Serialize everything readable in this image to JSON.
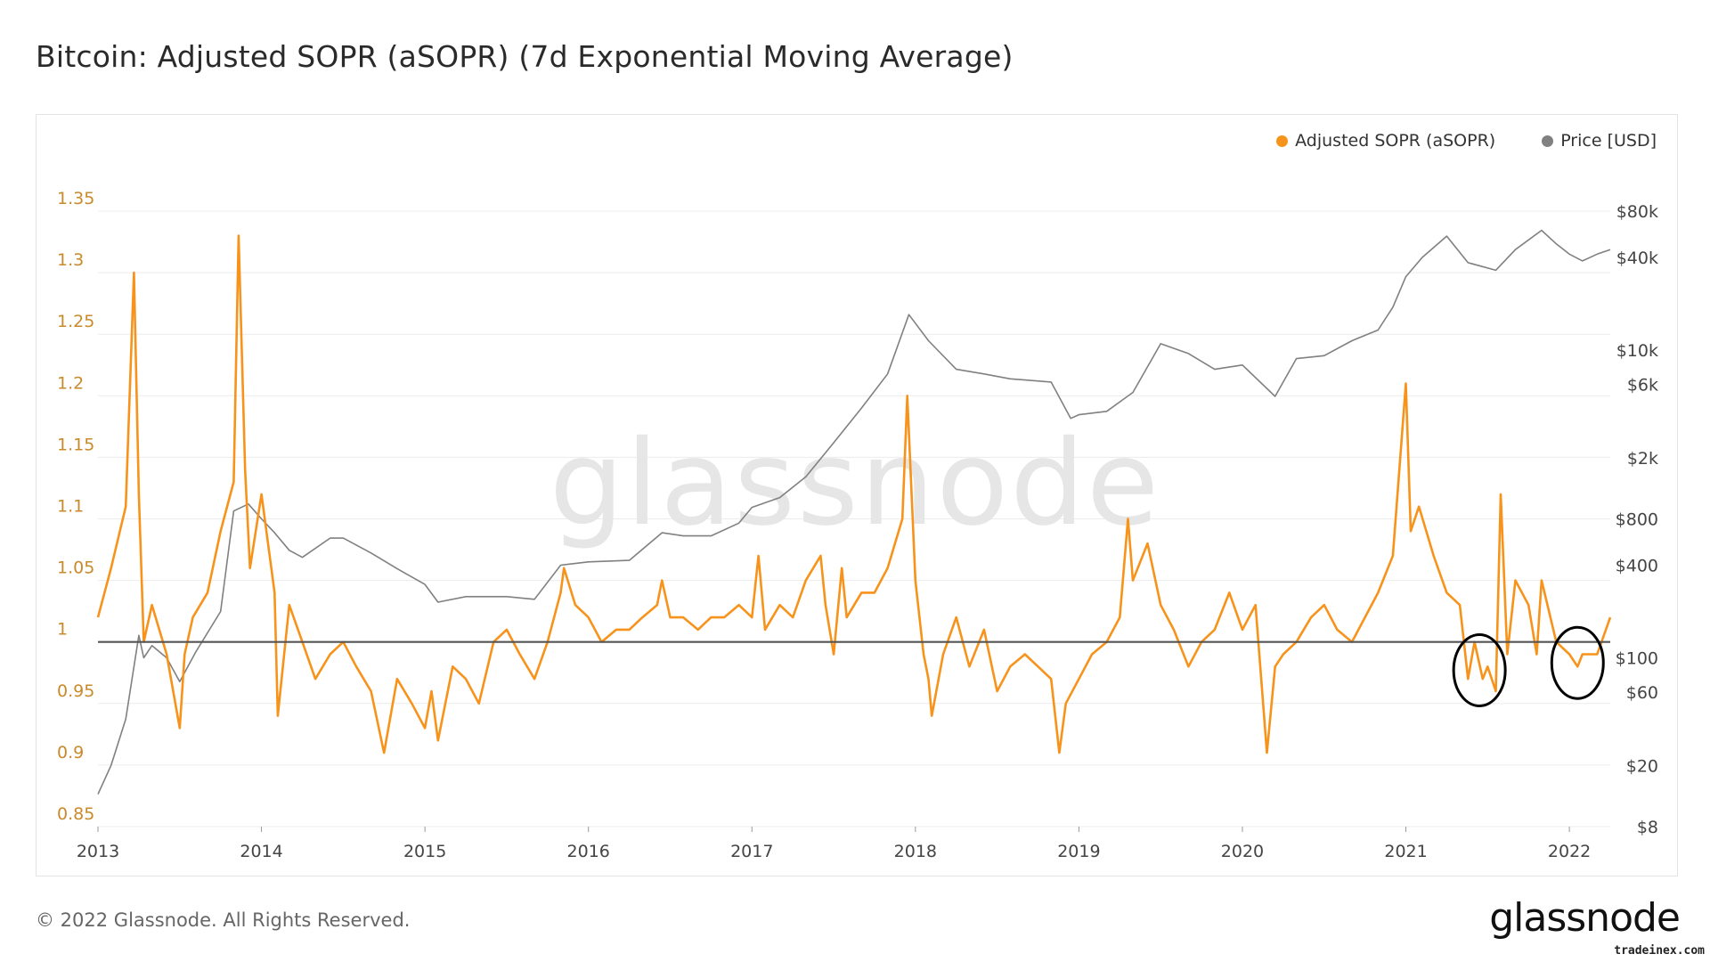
{
  "title": "Bitcoin: Adjusted SOPR (aSOPR) (7d Exponential Moving Average)",
  "footer": "© 2022 Glassnode. All Rights Reserved.",
  "logo": "glassnode",
  "watermark": "glassnode",
  "credit": "tradeinex.com",
  "legend": [
    {
      "label": "Adjusted SOPR (aSOPR)",
      "color": "#f7931a"
    },
    {
      "label": "Price [USD]",
      "color": "#808080"
    }
  ],
  "chart_data": {
    "type": "line",
    "grid": true,
    "legend_position": "top-right",
    "x_ticks": [
      "2013",
      "2014",
      "2015",
      "2016",
      "2017",
      "2018",
      "2019",
      "2020",
      "2021",
      "2022"
    ],
    "x_range": [
      2013.0,
      2022.25
    ],
    "y_left": {
      "ticks": [
        "1.35",
        "1.3",
        "1.25",
        "1.2",
        "1.15",
        "1.1",
        "1.05",
        "1",
        "0.95",
        "0.9",
        "0.85"
      ],
      "range": [
        0.85,
        1.35
      ],
      "color": "#f7931a"
    },
    "y_right": {
      "scale": "log",
      "ticks": [
        "$80k",
        "$40k",
        "$10k",
        "$6k",
        "$2k",
        "$800",
        "$400",
        "$100",
        "$60",
        "$20",
        "$8"
      ],
      "tick_values": [
        80000,
        40000,
        10000,
        6000,
        2000,
        800,
        400,
        100,
        60,
        20,
        8
      ],
      "range": [
        8,
        80000
      ]
    },
    "reference_line": {
      "y": 1,
      "color": "#555555"
    },
    "annotations": [
      {
        "type": "circle",
        "x": 2021.45,
        "y": 0.977
      },
      {
        "type": "circle",
        "x": 2022.05,
        "y": 0.983
      }
    ],
    "series": [
      {
        "name": "Adjusted SOPR (aSOPR)",
        "axis": "left",
        "color": "#f7931a",
        "x": [
          2013.0,
          2013.08,
          2013.17,
          2013.22,
          2013.25,
          2013.28,
          2013.33,
          2013.42,
          2013.5,
          2013.53,
          2013.58,
          2013.67,
          2013.75,
          2013.83,
          2013.86,
          2013.9,
          2013.93,
          2014.0,
          2014.08,
          2014.1,
          2014.17,
          2014.25,
          2014.33,
          2014.42,
          2014.5,
          2014.58,
          2014.67,
          2014.75,
          2014.83,
          2014.92,
          2015.0,
          2015.04,
          2015.08,
          2015.17,
          2015.25,
          2015.33,
          2015.42,
          2015.5,
          2015.58,
          2015.67,
          2015.75,
          2015.83,
          2015.85,
          2015.92,
          2016.0,
          2016.08,
          2016.17,
          2016.25,
          2016.33,
          2016.42,
          2016.45,
          2016.5,
          2016.58,
          2016.67,
          2016.75,
          2016.83,
          2016.92,
          2017.0,
          2017.04,
          2017.08,
          2017.17,
          2017.25,
          2017.33,
          2017.42,
          2017.45,
          2017.5,
          2017.55,
          2017.58,
          2017.67,
          2017.75,
          2017.83,
          2017.92,
          2017.95,
          2018.0,
          2018.05,
          2018.08,
          2018.1,
          2018.17,
          2018.25,
          2018.33,
          2018.42,
          2018.5,
          2018.58,
          2018.67,
          2018.75,
          2018.83,
          2018.88,
          2018.92,
          2019.0,
          2019.08,
          2019.17,
          2019.25,
          2019.3,
          2019.33,
          2019.42,
          2019.5,
          2019.58,
          2019.67,
          2019.75,
          2019.83,
          2019.92,
          2020.0,
          2020.08,
          2020.15,
          2020.2,
          2020.25,
          2020.33,
          2020.42,
          2020.5,
          2020.58,
          2020.67,
          2020.75,
          2020.83,
          2020.92,
          2021.0,
          2021.03,
          2021.08,
          2021.17,
          2021.25,
          2021.33,
          2021.38,
          2021.42,
          2021.47,
          2021.5,
          2021.55,
          2021.58,
          2021.62,
          2021.67,
          2021.75,
          2021.8,
          2021.83,
          2021.92,
          2022.0,
          2022.05,
          2022.08,
          2022.17,
          2022.25
        ],
        "y": [
          1.02,
          1.06,
          1.11,
          1.3,
          1.12,
          1.0,
          1.03,
          0.99,
          0.93,
          0.99,
          1.02,
          1.04,
          1.09,
          1.13,
          1.33,
          1.14,
          1.06,
          1.12,
          1.04,
          0.94,
          1.03,
          1.0,
          0.97,
          0.99,
          1.0,
          0.98,
          0.96,
          0.91,
          0.97,
          0.95,
          0.93,
          0.96,
          0.92,
          0.98,
          0.97,
          0.95,
          1.0,
          1.01,
          0.99,
          0.97,
          1.0,
          1.04,
          1.06,
          1.03,
          1.02,
          1.0,
          1.01,
          1.01,
          1.02,
          1.03,
          1.05,
          1.02,
          1.02,
          1.01,
          1.02,
          1.02,
          1.03,
          1.02,
          1.07,
          1.01,
          1.03,
          1.02,
          1.05,
          1.07,
          1.03,
          0.99,
          1.06,
          1.02,
          1.04,
          1.04,
          1.06,
          1.1,
          1.2,
          1.05,
          0.99,
          0.97,
          0.94,
          0.99,
          1.02,
          0.98,
          1.01,
          0.96,
          0.98,
          0.99,
          0.98,
          0.97,
          0.91,
          0.95,
          0.97,
          0.99,
          1.0,
          1.02,
          1.1,
          1.05,
          1.08,
          1.03,
          1.01,
          0.98,
          1.0,
          1.01,
          1.04,
          1.01,
          1.03,
          0.91,
          0.98,
          0.99,
          1.0,
          1.02,
          1.03,
          1.01,
          1.0,
          1.02,
          1.04,
          1.07,
          1.21,
          1.09,
          1.11,
          1.07,
          1.04,
          1.03,
          0.97,
          1.0,
          0.97,
          0.98,
          0.96,
          1.12,
          0.99,
          1.05,
          1.03,
          0.99,
          1.05,
          1.0,
          0.99,
          0.98,
          0.99,
          0.99,
          1.02
        ]
      },
      {
        "name": "Price [USD]",
        "axis": "right",
        "color": "#808080",
        "x": [
          2013.0,
          2013.08,
          2013.17,
          2013.25,
          2013.28,
          2013.33,
          2013.42,
          2013.5,
          2013.6,
          2013.75,
          2013.83,
          2013.92,
          2014.0,
          2014.08,
          2014.17,
          2014.25,
          2014.42,
          2014.5,
          2014.67,
          2014.83,
          2015.0,
          2015.08,
          2015.25,
          2015.5,
          2015.67,
          2015.83,
          2016.0,
          2016.25,
          2016.45,
          2016.58,
          2016.75,
          2016.92,
          2017.0,
          2017.17,
          2017.33,
          2017.5,
          2017.67,
          2017.83,
          2017.96,
          2018.08,
          2018.25,
          2018.42,
          2018.58,
          2018.83,
          2018.95,
          2019.0,
          2019.17,
          2019.33,
          2019.5,
          2019.67,
          2019.83,
          2020.0,
          2020.2,
          2020.33,
          2020.5,
          2020.67,
          2020.83,
          2020.92,
          2021.0,
          2021.1,
          2021.25,
          2021.38,
          2021.55,
          2021.67,
          2021.83,
          2021.92,
          2022.0,
          2022.08,
          2022.17,
          2022.25
        ],
        "y": [
          13,
          20,
          40,
          140,
          100,
          120,
          100,
          70,
          110,
          200,
          900,
          1000,
          800,
          650,
          500,
          450,
          600,
          600,
          480,
          380,
          300,
          230,
          250,
          250,
          240,
          400,
          420,
          430,
          650,
          620,
          620,
          750,
          950,
          1100,
          1500,
          2500,
          4200,
          7000,
          17000,
          11500,
          7500,
          7000,
          6500,
          6200,
          3600,
          3800,
          4000,
          5300,
          11000,
          9500,
          7500,
          8000,
          5000,
          8800,
          9200,
          11500,
          13500,
          19000,
          30000,
          40000,
          55000,
          37000,
          33000,
          45000,
          60000,
          49000,
          42000,
          38000,
          42000,
          45000
        ]
      }
    ]
  }
}
